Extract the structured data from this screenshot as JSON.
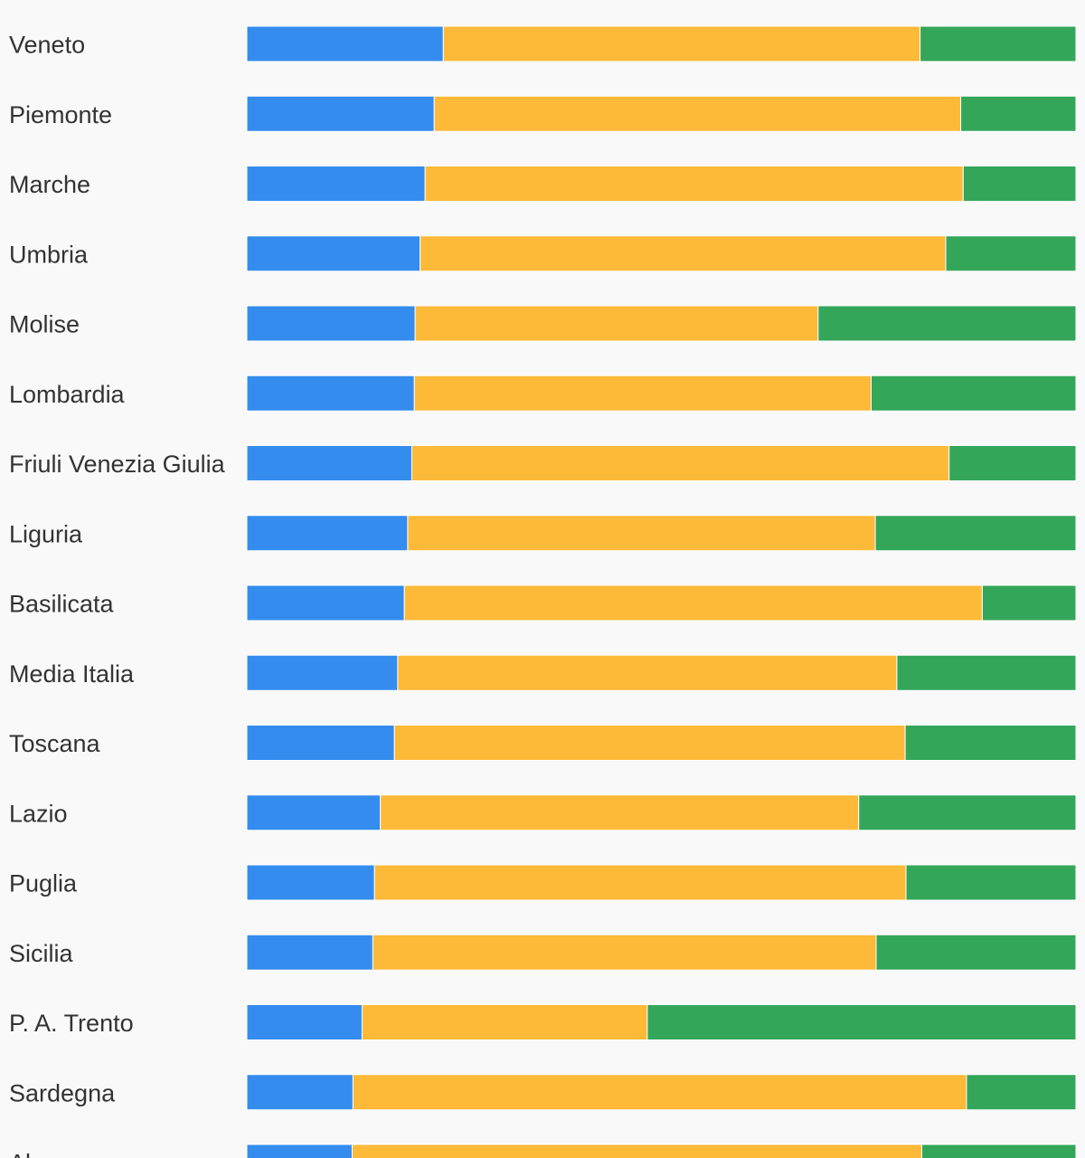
{
  "chart_data": {
    "type": "bar",
    "orientation": "horizontal",
    "stacked": true,
    "normalized": true,
    "categories": [
      "Veneto",
      "Piemonte",
      "Marche",
      "Umbria",
      "Molise",
      "Lombardia",
      "Friuli Venezia Giulia",
      "Liguria",
      "Basilicata",
      "Media Italia",
      "Toscana",
      "Lazio",
      "Puglia",
      "Sicilia",
      "P. A. Trento",
      "Sardegna",
      "Al"
    ],
    "series": [
      {
        "color": "#348cee",
        "values": [
          23.7,
          22.6,
          21.5,
          20.9,
          20.3,
          20.2,
          19.9,
          19.4,
          19.0,
          18.2,
          17.8,
          16.1,
          15.4,
          15.2,
          13.9,
          12.8,
          12.7
        ]
      },
      {
        "color": "#fdb938",
        "values": [
          57.5,
          63.5,
          64.9,
          63.4,
          48.6,
          55.1,
          64.8,
          56.4,
          69.7,
          60.2,
          61.6,
          57.7,
          64.1,
          60.7,
          34.4,
          74.0,
          68.7
        ]
      },
      {
        "color": "#33a65a",
        "values": [
          18.8,
          13.9,
          13.6,
          15.7,
          31.1,
          24.7,
          15.3,
          24.2,
          11.3,
          21.6,
          20.6,
          26.2,
          20.5,
          24.1,
          51.7,
          13.2,
          18.6
        ]
      }
    ],
    "xlim": [
      0,
      100
    ],
    "grid": false,
    "legend": "none"
  }
}
